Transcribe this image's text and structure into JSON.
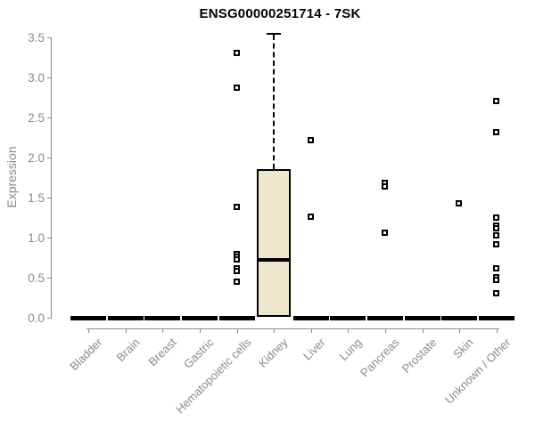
{
  "header": {
    "title": "ENSG00000251714 - 7SK"
  },
  "chart_data": {
    "type": "box",
    "title": "ENSG00000251714 - 7SK",
    "xlabel": "",
    "ylabel": "Expression",
    "ylim": [
      0,
      3.5
    ],
    "yticks": [
      0.0,
      0.5,
      1.0,
      1.5,
      2.0,
      2.5,
      3.0,
      3.5
    ],
    "grid": false,
    "legend": "none",
    "categories": [
      "Bladder",
      "Brain",
      "Breast",
      "Gastric",
      "Hematopoietic cells",
      "Kidney",
      "Liver",
      "Lung",
      "Pancreas",
      "Prostate",
      "Skin",
      "Unknown / Other"
    ],
    "series": [
      {
        "category": "Bladder",
        "type": "flat",
        "median": 0,
        "outliers": []
      },
      {
        "category": "Brain",
        "type": "flat",
        "median": 0,
        "outliers": []
      },
      {
        "category": "Breast",
        "type": "flat",
        "median": 0,
        "outliers": []
      },
      {
        "category": "Gastric",
        "type": "flat",
        "median": 0,
        "outliers": []
      },
      {
        "category": "Hematopoietic cells",
        "type": "flat",
        "median": 0,
        "outliers": [
          3.3,
          2.87,
          1.38,
          0.79,
          0.76,
          0.72,
          0.61,
          0.58,
          0.44
        ]
      },
      {
        "category": "Kidney",
        "type": "box",
        "q1": 0.02,
        "median": 0.72,
        "q3": 1.86,
        "whisker_low": 0.02,
        "whisker_high": 3.55,
        "outliers": []
      },
      {
        "category": "Liver",
        "type": "flat",
        "median": 0,
        "outliers": [
          2.21,
          1.26
        ]
      },
      {
        "category": "Lung",
        "type": "flat",
        "median": 0,
        "outliers": []
      },
      {
        "category": "Pancreas",
        "type": "flat",
        "median": 0,
        "outliers": [
          1.68,
          1.63,
          1.06
        ]
      },
      {
        "category": "Prostate",
        "type": "flat",
        "median": 0,
        "outliers": []
      },
      {
        "category": "Skin",
        "type": "flat",
        "median": 0,
        "outliers": [
          1.42
        ]
      },
      {
        "category": "Unknown / Other",
        "type": "flat",
        "median": 0,
        "outliers": [
          2.7,
          2.31,
          1.24,
          1.14,
          1.11,
          1.02,
          0.91,
          0.61,
          0.5,
          0.47,
          0.3
        ]
      }
    ],
    "colors": {
      "box_fill": "#ede8cd",
      "box_border": "#000000",
      "median": "#000000",
      "whisker": "#000000",
      "flat_bar": "#000000",
      "outlier_border": "#000000",
      "outlier_fill": "#ffffff",
      "axis_line": "#8c8c8c",
      "tick_label": "#8a8a8a",
      "title": "#000000"
    }
  }
}
